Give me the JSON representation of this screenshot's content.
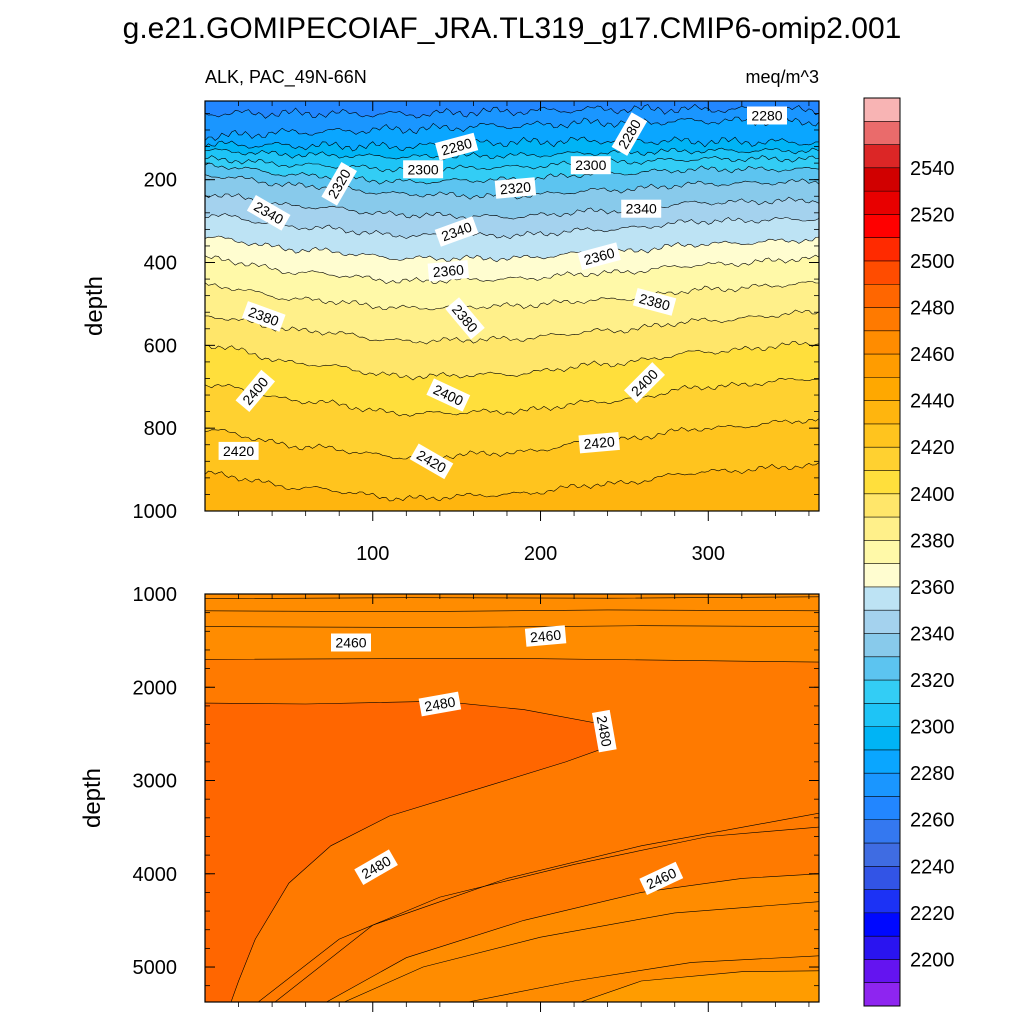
{
  "chart_data": [
    {
      "type": "heatmap",
      "title": "g.e21.GOMIPECOIAF_JRA.TL319_g17.CMIP6-omip2.001",
      "subtitle_left": "ALK, PAC_49N-66N",
      "subtitle_right": "meq/m^3",
      "xlabel": "",
      "ylabel": "depth",
      "xlim": [
        0,
        366
      ],
      "ylim": [
        1000,
        10
      ],
      "xticks": [
        100,
        200,
        300
      ],
      "xtick_labels": [
        "100",
        "200",
        "300"
      ],
      "yticks": [
        200,
        400,
        600,
        800,
        1000
      ],
      "ytick_labels": [
        "200",
        "400",
        "600",
        "800",
        "1000"
      ],
      "contour_labels": [
        {
          "value": 2280,
          "x": 335,
          "y": 45,
          "angle": 0
        },
        {
          "value": 2280,
          "x": 253,
          "y": 90,
          "angle": -60
        },
        {
          "value": 2280,
          "x": 150,
          "y": 120,
          "angle": -15
        },
        {
          "value": 2300,
          "x": 130,
          "y": 175,
          "angle": 0
        },
        {
          "value": 2300,
          "x": 230,
          "y": 165,
          "angle": 0
        },
        {
          "value": 2320,
          "x": 80,
          "y": 210,
          "angle": -60
        },
        {
          "value": 2320,
          "x": 185,
          "y": 220,
          "angle": -5
        },
        {
          "value": 2340,
          "x": 38,
          "y": 280,
          "angle": 30
        },
        {
          "value": 2340,
          "x": 150,
          "y": 325,
          "angle": -20
        },
        {
          "value": 2340,
          "x": 260,
          "y": 270,
          "angle": 0
        },
        {
          "value": 2360,
          "x": 145,
          "y": 420,
          "angle": -5
        },
        {
          "value": 2360,
          "x": 235,
          "y": 385,
          "angle": -15
        },
        {
          "value": 2380,
          "x": 35,
          "y": 530,
          "angle": 20
        },
        {
          "value": 2380,
          "x": 155,
          "y": 535,
          "angle": 50
        },
        {
          "value": 2380,
          "x": 268,
          "y": 495,
          "angle": 15
        },
        {
          "value": 2400,
          "x": 30,
          "y": 710,
          "angle": -50
        },
        {
          "value": 2400,
          "x": 145,
          "y": 720,
          "angle": 25
        },
        {
          "value": 2400,
          "x": 262,
          "y": 690,
          "angle": -45
        },
        {
          "value": 2420,
          "x": 20,
          "y": 855,
          "angle": 0
        },
        {
          "value": 2420,
          "x": 135,
          "y": 880,
          "angle": 30
        },
        {
          "value": 2420,
          "x": 235,
          "y": 835,
          "angle": -5
        }
      ]
    },
    {
      "type": "heatmap",
      "xlabel": "",
      "ylabel": "depth",
      "xlim": [
        0,
        366
      ],
      "ylim": [
        5375,
        1000
      ],
      "xticks": [
        100,
        200,
        300
      ],
      "yticks": [
        1000,
        2000,
        3000,
        4000,
        5000
      ],
      "ytick_labels": [
        "1000",
        "2000",
        "3000",
        "4000",
        "5000"
      ],
      "contour_labels": [
        {
          "value": 2460,
          "x": 87,
          "y": 1520,
          "angle": 0
        },
        {
          "value": 2460,
          "x": 203,
          "y": 1450,
          "angle": -5
        },
        {
          "value": 2480,
          "x": 140,
          "y": 2180,
          "angle": -10
        },
        {
          "value": 2480,
          "x": 238,
          "y": 2470,
          "angle": 80
        },
        {
          "value": 2480,
          "x": 102,
          "y": 3930,
          "angle": -30
        },
        {
          "value": 2460,
          "x": 272,
          "y": 4050,
          "angle": -25
        }
      ]
    }
  ],
  "colorbar": {
    "levels": [
      2190,
      2200,
      2210,
      2220,
      2230,
      2240,
      2250,
      2260,
      2270,
      2280,
      2290,
      2300,
      2310,
      2320,
      2330,
      2340,
      2350,
      2360,
      2370,
      2380,
      2390,
      2400,
      2410,
      2420,
      2430,
      2440,
      2450,
      2460,
      2470,
      2480,
      2490,
      2500,
      2510,
      2520,
      2530,
      2540,
      2550,
      2560
    ],
    "labels": [
      "2200",
      "2220",
      "2240",
      "2260",
      "2280",
      "2300",
      "2320",
      "2340",
      "2360",
      "2380",
      "2400",
      "2420",
      "2440",
      "2460",
      "2480",
      "2500",
      "2520",
      "2540"
    ],
    "colors": [
      "#8e25f0",
      "#6414f0",
      "#2a14f0",
      "#0008ff",
      "#1c32f5",
      "#3254e6",
      "#3f6ce2",
      "#3478f0",
      "#2286ff",
      "#1a96ff",
      "#0aa6ff",
      "#00b4f5",
      "#1ec4f6",
      "#33cdf5",
      "#5cc4f0",
      "#88caeb",
      "#a4d2ee",
      "#bde3f4",
      "#fffdd0",
      "#fff9a8",
      "#fff08a",
      "#ffe66a",
      "#ffdf3c",
      "#ffd130",
      "#ffc41e",
      "#ffb50e",
      "#ffa800",
      "#ff9c00",
      "#ff8c00",
      "#ff7a00",
      "#ff6600",
      "#ff4c00",
      "#ff2a00",
      "#ff0000",
      "#e80000",
      "#d10000",
      "#dc2626",
      "#ea6b6b",
      "#f8b4b4"
    ]
  }
}
